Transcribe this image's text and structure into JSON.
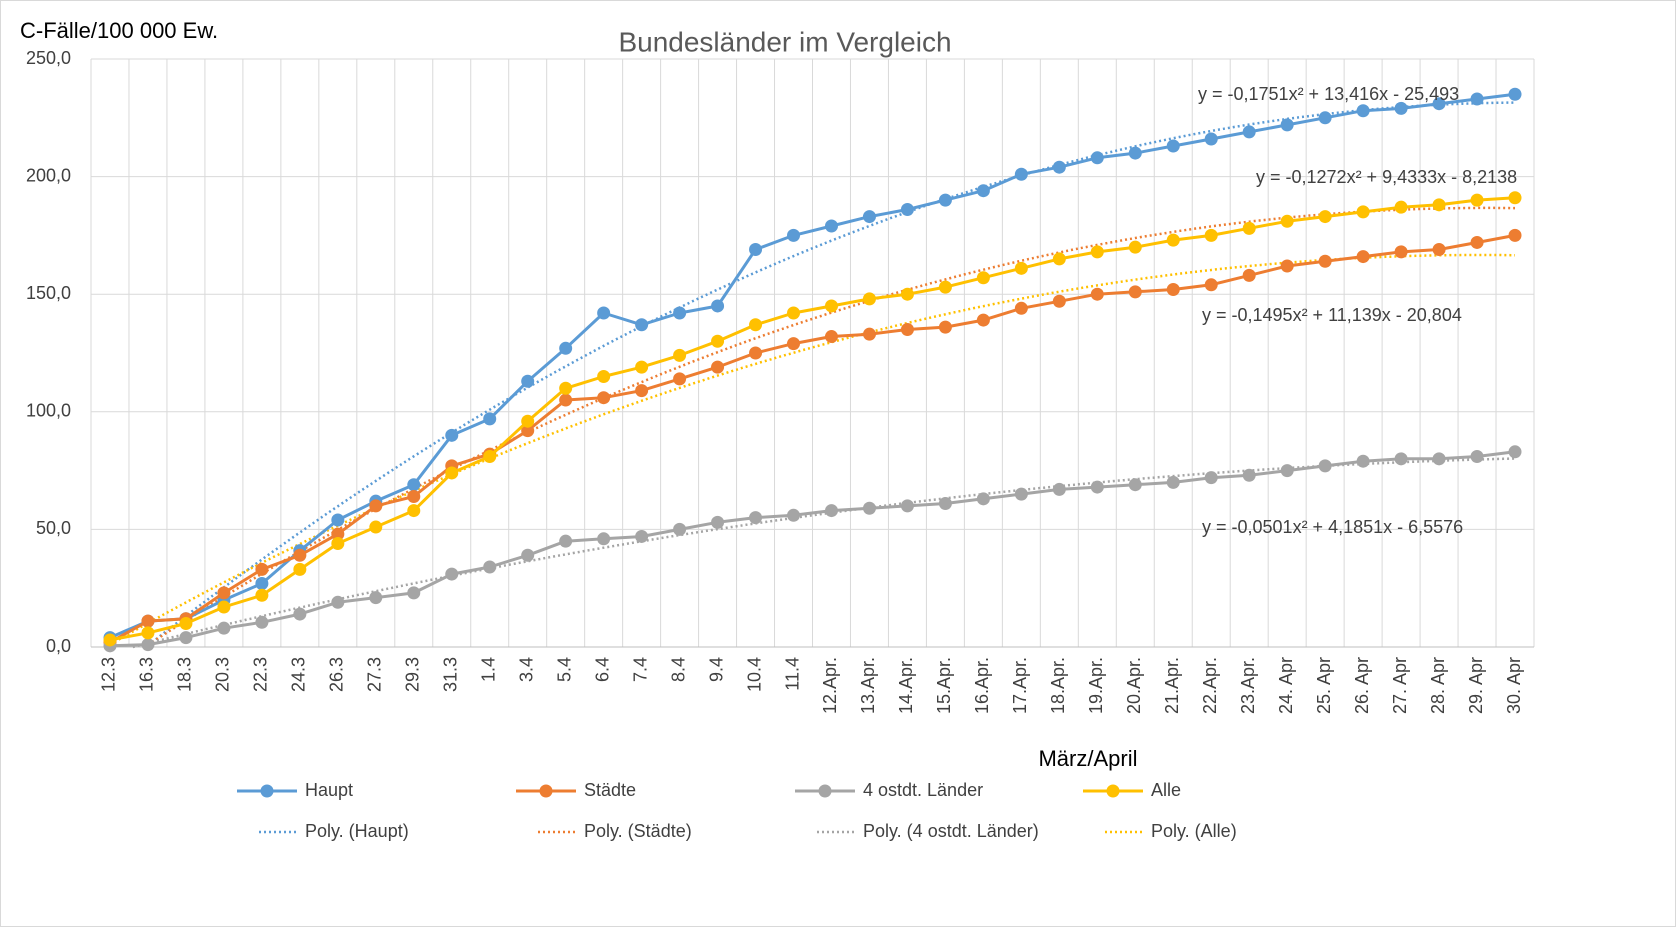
{
  "chart_data": {
    "type": "line",
    "title": "Bundesländer im Vergleich",
    "y_axis_title": "C-Fälle/100 000 Ew.",
    "x_axis_title": "März/April",
    "categories": [
      "12.3",
      "16.3",
      "18.3",
      "20.3",
      "22.3",
      "24.3",
      "26.3",
      "27.3",
      "29.3",
      "31.3",
      "1.4",
      "3.4",
      "5.4",
      "6.4",
      "7.4",
      "8.4",
      "9.4",
      "10.4",
      "11.4",
      "12.Apr.",
      "13.Apr.",
      "14.Apr.",
      "15.Apr.",
      "16.Apr.",
      "17.Apr.",
      "18.Apr.",
      "19.Apr.",
      "20.Apr.",
      "21.Apr.",
      "22.Apr.",
      "23.Apr.",
      "24. Apr",
      "25. Apr",
      "26. Apr",
      "27. Apr",
      "28. Apr",
      "29. Apr",
      "30. Apr"
    ],
    "ylim": [
      0,
      250
    ],
    "yticks": [
      {
        "value": 0,
        "label": "0,0"
      },
      {
        "value": 50,
        "label": "50,0"
      },
      {
        "value": 100,
        "label": "100,0"
      },
      {
        "value": 150,
        "label": "150,0"
      },
      {
        "value": 200,
        "label": "200,0"
      },
      {
        "value": 250,
        "label": "250,0"
      }
    ],
    "grid": true,
    "series": [
      {
        "name": "Haupt",
        "color": "#5b9bd5",
        "values": [
          4,
          11,
          12,
          20,
          27,
          41,
          54,
          62,
          69,
          90,
          97,
          113,
          127,
          142,
          137,
          142,
          145,
          169,
          175,
          179,
          183,
          186,
          190,
          194,
          201,
          204,
          208,
          210,
          213,
          216,
          219,
          222,
          225,
          228,
          229,
          231,
          233,
          235
        ],
        "trendline": {
          "name": "Poly. (Haupt)",
          "label": "y = -0,1751x² + 13,416x - 25,493",
          "coefficients": [
            -0.1751,
            13.416,
            -25.493
          ]
        }
      },
      {
        "name": "Städte",
        "color": "#ed7d31",
        "values": [
          2,
          11,
          12,
          23,
          33,
          39,
          48,
          60,
          64,
          77,
          82,
          92,
          105,
          106,
          109,
          114,
          119,
          125,
          129,
          132,
          133,
          135,
          136,
          139,
          144,
          147,
          150,
          151,
          152,
          154,
          158,
          162,
          164,
          166,
          168,
          169,
          172,
          175
        ],
        "trendline": {
          "name": "Poly. (Städte)",
          "label": "y = -0,1495x² + 11,139x - 20,804",
          "coefficients": [
            -0.1495,
            11.139,
            -20.804
          ]
        }
      },
      {
        "name": "4 ostdt. Länder",
        "color": "#a5a5a5",
        "values": [
          0.5,
          1,
          4,
          8,
          10.5,
          14,
          19,
          21,
          23,
          31,
          34,
          39,
          45,
          46,
          47,
          50,
          53,
          55,
          56,
          58,
          59,
          60,
          61,
          63,
          65,
          67,
          68,
          69,
          70,
          72,
          73,
          75,
          77,
          79,
          80,
          80,
          81,
          83
        ],
        "trendline": {
          "name": "Poly. (4 ostdt. Länder)",
          "label": "y = -0,0501x² + 4,1851x - 6,5576",
          "coefficients": [
            -0.0501,
            4.1851,
            -6.5576
          ]
        }
      },
      {
        "name": "Alle",
        "color": "#ffc000",
        "values": [
          3,
          6,
          10,
          17,
          22,
          33,
          44,
          51,
          58,
          74,
          81,
          96,
          110,
          115,
          119,
          124,
          130,
          137,
          142,
          145,
          148,
          150,
          153,
          157,
          161,
          165,
          168,
          170,
          173,
          175,
          178,
          181,
          183,
          185,
          187,
          188,
          190,
          191
        ],
        "trendline": {
          "name": "Poly. (Alle)",
          "label": "y = -0,1272x² + 9,4333x - 8,2138",
          "coefficients": [
            -0.1272,
            9.4333,
            -8.2138
          ]
        }
      }
    ]
  }
}
